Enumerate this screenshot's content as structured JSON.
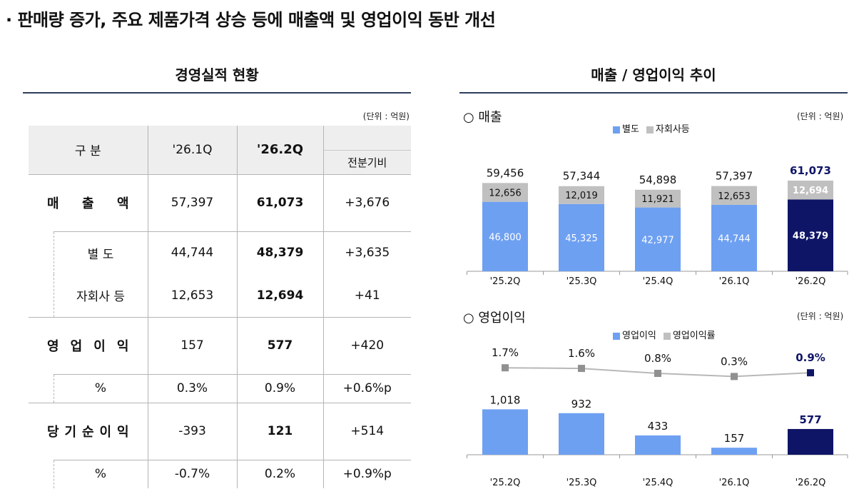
{
  "headline": "· 판매량 증가, 주요 제품가격 상승 등에 매출액 및 영업이익 동반 개선",
  "left": {
    "title": "경영실적 현황",
    "unit": "(단위 : 억원)",
    "header": {
      "category": "구 분",
      "prev": "'26.1Q",
      "curr": "'26.2Q",
      "diff": "전분기비"
    },
    "rows": {
      "revenue": {
        "label": "매 출 액",
        "prev": "57,397",
        "curr": "61,073",
        "diff": "+3,676"
      },
      "separate": {
        "label": "별 도",
        "prev": "44,744",
        "curr": "48,379",
        "diff": "+3,635"
      },
      "subsidiary": {
        "label": "자회사 등",
        "prev": "12,653",
        "curr": "12,694",
        "diff": "+41"
      },
      "op_income": {
        "label": "영 업 이 익",
        "prev": "157",
        "curr": "577",
        "diff": "+420"
      },
      "op_margin": {
        "label": "%",
        "prev": "0.3%",
        "curr": "0.9%",
        "diff": "+0.6%p"
      },
      "net_income": {
        "label": "당 기 순 이 익",
        "prev": "-393",
        "curr": "121",
        "diff": "+514"
      },
      "net_margin": {
        "label": "%",
        "prev": "-0.7%",
        "curr": "0.2%",
        "diff": "+0.9%p"
      }
    }
  },
  "right": {
    "title": "매출 / 영업이익 추이",
    "revenue_label": "○ 매출",
    "op_label": "○ 영업이익",
    "unit": "(단위 : 억원)"
  },
  "colors": {
    "light_blue": "#6ea0f2",
    "gray": "#c0c0c0",
    "navy": "#0f1566",
    "marker_gray": "#909090",
    "rule": "#2d3e5c"
  },
  "chart_data": [
    {
      "type": "bar",
      "categories": [
        "'25.2Q",
        "'25.3Q",
        "'25.4Q",
        "'26.1Q",
        "'26.2Q"
      ],
      "series": [
        {
          "name": "별도",
          "values": [
            46800,
            45325,
            42977,
            44744,
            48379
          ]
        },
        {
          "name": "자회사등",
          "values": [
            12656,
            12019,
            11921,
            12653,
            12694
          ]
        }
      ],
      "totals": [
        59456,
        57344,
        54898,
        57397,
        61073
      ],
      "labels": {
        "separate": [
          "46,800",
          "45,325",
          "42,977",
          "44,744",
          "48,379"
        ],
        "subsidiary": [
          "12,656",
          "12,019",
          "11,921",
          "12,653",
          "12,694"
        ],
        "totals": [
          "59,456",
          "57,344",
          "54,898",
          "57,397",
          "61,073"
        ]
      },
      "stacked": true,
      "legend": "top-center"
    },
    {
      "type": "bar",
      "categories": [
        "'25.2Q",
        "'25.3Q",
        "'25.4Q",
        "'26.1Q",
        "'26.2Q"
      ],
      "series": [
        {
          "name": "영업이익",
          "values": [
            1018,
            932,
            433,
            157,
            577
          ]
        },
        {
          "name": "영업이익률",
          "values": [
            1.7,
            1.6,
            0.8,
            0.3,
            0.9
          ]
        }
      ],
      "labels": {
        "bars": [
          "1,018",
          "932",
          "433",
          "157",
          "577"
        ],
        "rates": [
          "1.7%",
          "1.6%",
          "0.8%",
          "0.3%",
          "0.9%"
        ]
      },
      "legend": "top-center"
    }
  ]
}
